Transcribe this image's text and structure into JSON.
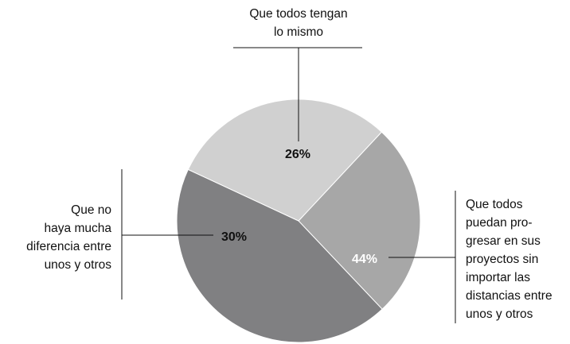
{
  "chart_data": {
    "type": "pie",
    "categories": [
      "Que todos tengan\nlo mismo",
      "Que todos\npuedan pro-\ngresar en sus\nproyectos sin\nimportar las\ndistancias entre\nunos y otros",
      "Que no\nhaya mucha\ndiferencia entre\nunos y otros"
    ],
    "values": [
      26,
      44,
      30
    ],
    "value_labels": [
      "26%",
      "44%",
      "30%"
    ],
    "colors": [
      "#a7a7a7",
      "#808082",
      "#d0d0d0"
    ]
  }
}
